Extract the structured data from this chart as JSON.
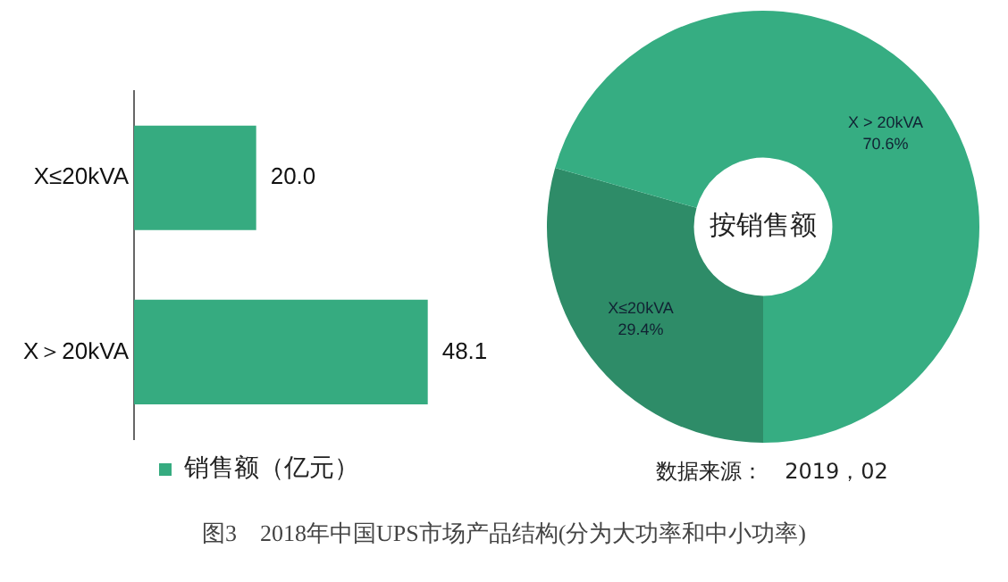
{
  "chart_data": [
    {
      "type": "bar",
      "orientation": "horizontal",
      "categories": [
        "X≤20kVA",
        "X＞20kVA"
      ],
      "series": [
        {
          "name": "销售额（亿元）",
          "color": "#36ab80",
          "values": [
            20.0,
            48.1
          ],
          "value_labels": [
            "20.0",
            "48.1"
          ]
        }
      ],
      "legend": "bottom",
      "tick_labels": "y",
      "annotations": [
        "图3　2018年中国UPS市场产品结构(分为大功率和中小功率)"
      ]
    },
    {
      "type": "donut",
      "title": "按销售额",
      "categories": [
        "X≤20kVA",
        "X > 20kVA"
      ],
      "values": [
        29.4,
        70.6
      ],
      "colors": [
        "#2e8c68",
        "#36ad82"
      ],
      "value_labels": [
        "29.4%",
        "70.6%"
      ],
      "legend": false,
      "annotations": [
        "数据来源：　2019，02"
      ]
    }
  ]
}
